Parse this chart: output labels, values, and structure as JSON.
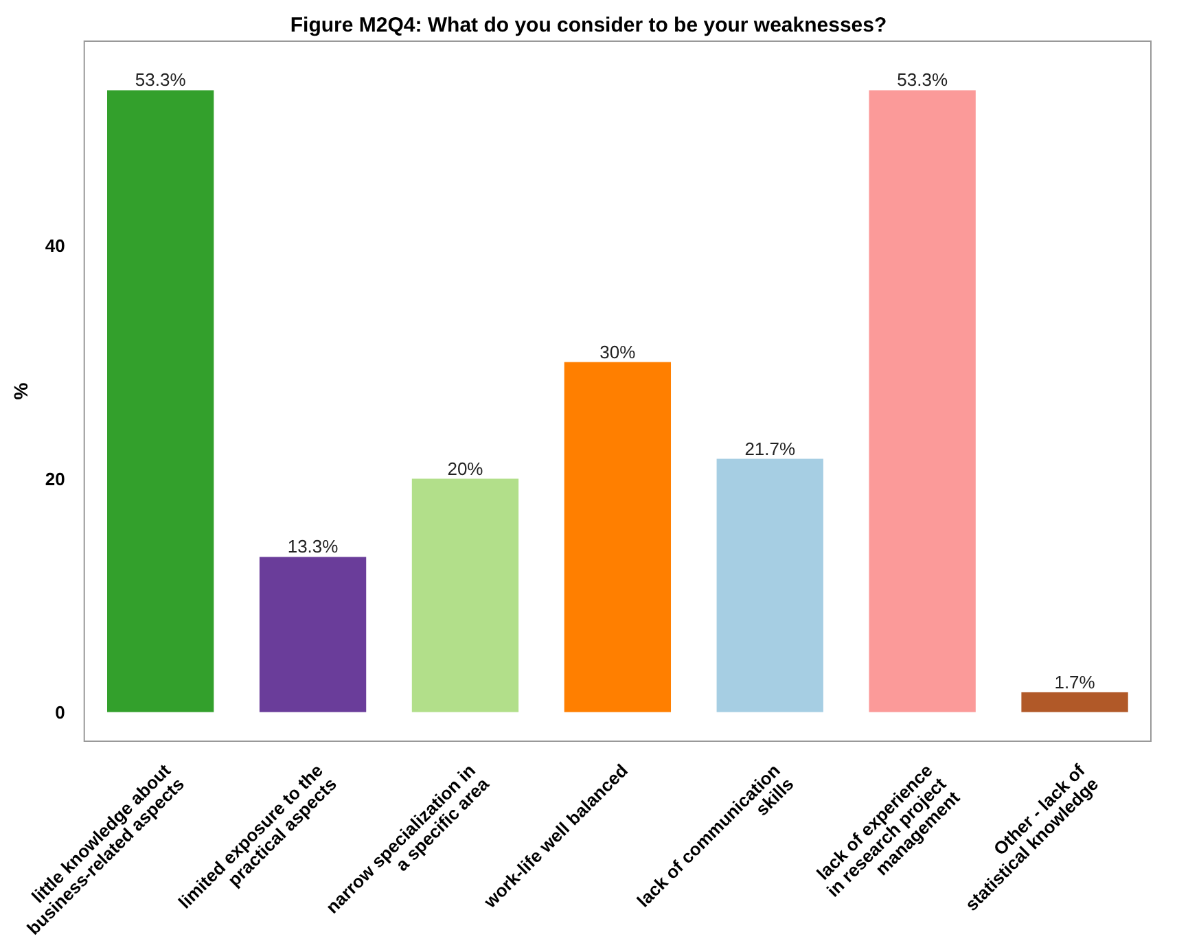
{
  "chart_data": {
    "type": "bar",
    "title": "Figure M2Q4: What do you consider to be your weaknesses?",
    "ylabel": "%",
    "categories": [
      "little knowledge about\nbusiness-related aspects",
      "limited exposure to the\npractical aspects",
      "narrow specialization in\na specific area",
      "work-life well balanced",
      "lack of communication\nskills",
      "lack of experience\nin research project\nmanagement",
      "Other - lack of\nstatistical knowledge"
    ],
    "values": [
      53.3,
      13.3,
      20,
      30,
      21.7,
      53.3,
      1.7
    ],
    "colors": [
      "#33a02c",
      "#6a3d9a",
      "#b2df8a",
      "#ff7f00",
      "#a6cee3",
      "#fb9a99",
      "#b15928"
    ],
    "value_labels": [
      "53.3%",
      "13.3%",
      "20%",
      "30%",
      "21.7%",
      "53.3%",
      "1.7%"
    ],
    "ylim": [
      -2.5,
      57.5
    ],
    "yticks": [
      0,
      20,
      40
    ],
    "grid": false
  }
}
